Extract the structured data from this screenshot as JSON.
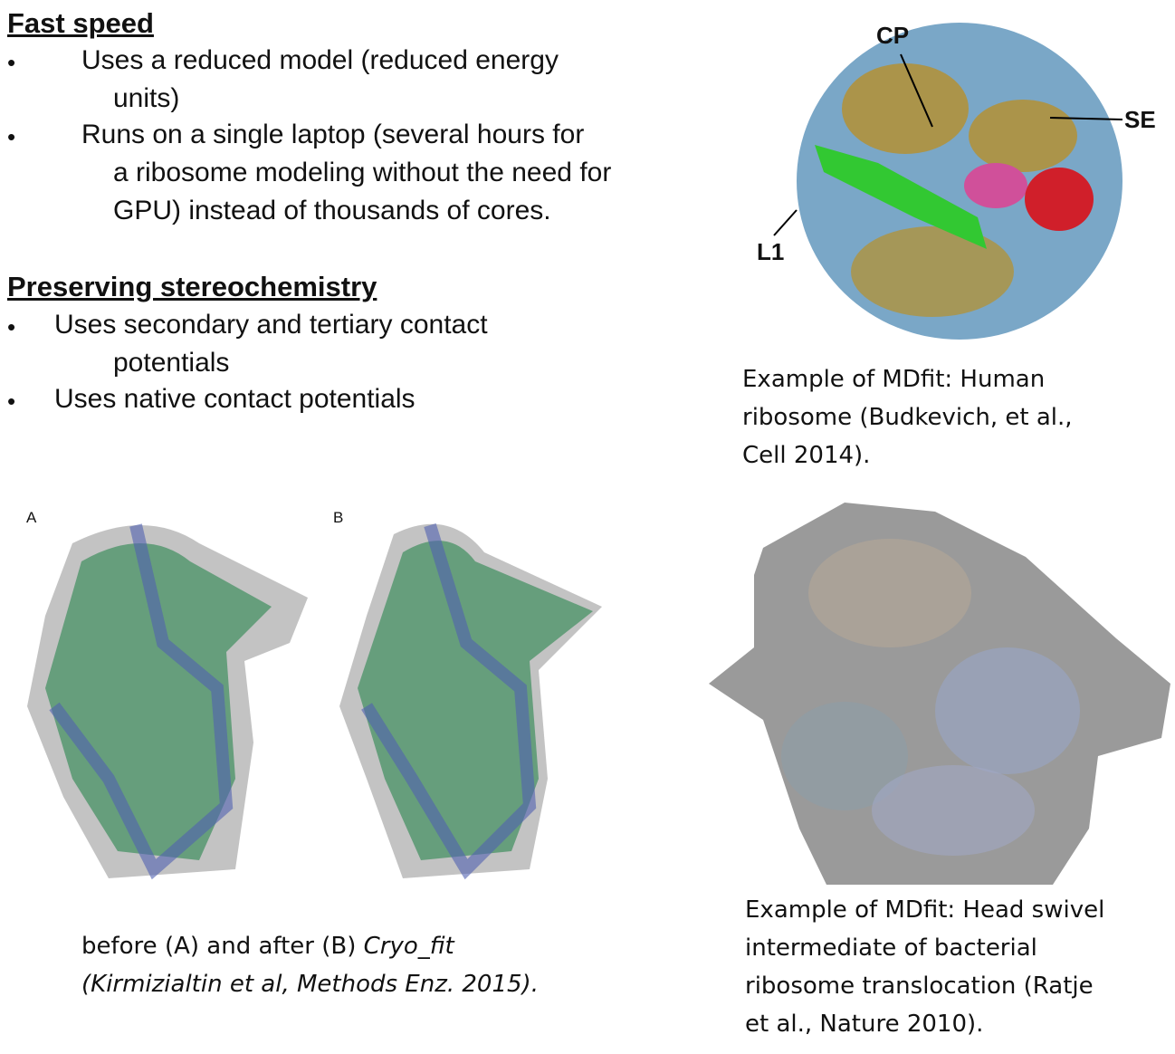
{
  "section1": {
    "heading": "Fast speed",
    "bullets": [
      {
        "lines": [
          "Uses a reduced model (reduced energy",
          "units)"
        ]
      },
      {
        "lines": [
          "Runs on a single laptop (several hours for",
          "a ribosome modeling without the need for",
          "GPU) instead of thousands of cores."
        ]
      }
    ]
  },
  "section2": {
    "heading": "Preserving stereochemistry",
    "bullets": [
      {
        "lines": [
          "Uses secondary and tertiary contact",
          "potentials"
        ]
      },
      {
        "lines": [
          "Uses native contact potentials"
        ]
      }
    ]
  },
  "bullet_char": "•",
  "figure_top_right": {
    "labels": {
      "cp": "CP",
      "se": "SE",
      "l1": "L1"
    },
    "caption": [
      "Example of MDfit: Human",
      "ribosome (Budkevich, et al.,",
      "Cell 2014)."
    ]
  },
  "figure_bottom_left": {
    "panel_a": "A",
    "panel_b": "B",
    "caption": {
      "line1_plain": "before (A) and after (B) ",
      "line1_italic": "Cryo_fit",
      "line2_italic": "(Kirmizialtin et al, Methods Enz. 2015)."
    }
  },
  "figure_bottom_right": {
    "caption": [
      "Example of MDfit: Head swivel",
      "intermediate of bacterial",
      "ribosome translocation (Ratje",
      "et al., Nature 2010)."
    ]
  }
}
